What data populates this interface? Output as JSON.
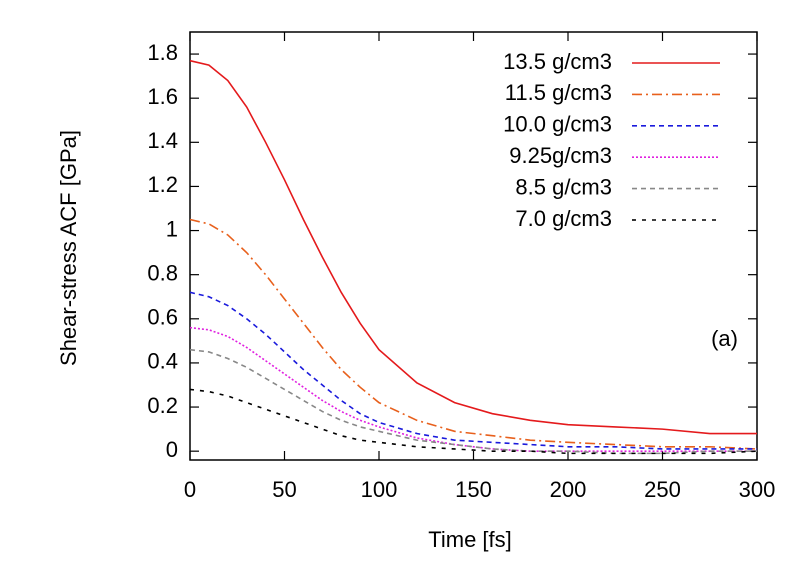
{
  "chart_data": {
    "type": "line",
    "xlabel": "Time [fs]",
    "ylabel": "Shear-stress ACF [GPa]",
    "annotation": "(a)",
    "x": [
      0,
      10,
      20,
      30,
      40,
      50,
      60,
      70,
      80,
      90,
      100,
      120,
      140,
      160,
      180,
      200,
      225,
      250,
      275,
      300
    ],
    "xlim": [
      0,
      300
    ],
    "xticks": [
      0,
      50,
      100,
      150,
      200,
      250,
      300
    ],
    "ylim": [
      -0.04,
      1.9
    ],
    "yticks": [
      0,
      0.2,
      0.4,
      0.6,
      0.8,
      1,
      1.2,
      1.4,
      1.6,
      1.8
    ],
    "series": [
      {
        "name": "13.5 g/cm3",
        "color": "#e41a1c",
        "values": [
          1.77,
          1.75,
          1.68,
          1.56,
          1.4,
          1.23,
          1.05,
          0.88,
          0.72,
          0.58,
          0.46,
          0.31,
          0.22,
          0.17,
          0.14,
          0.12,
          0.11,
          0.1,
          0.08,
          0.08
        ]
      },
      {
        "name": "11.5 g/cm3",
        "color": "#e8601c",
        "values": [
          1.05,
          1.03,
          0.98,
          0.9,
          0.8,
          0.69,
          0.58,
          0.47,
          0.37,
          0.29,
          0.22,
          0.14,
          0.09,
          0.07,
          0.05,
          0.04,
          0.03,
          0.02,
          0.02,
          0.01
        ]
      },
      {
        "name": "10.0 g/cm3",
        "color": "#1a1adc",
        "values": [
          0.72,
          0.7,
          0.66,
          0.6,
          0.53,
          0.45,
          0.37,
          0.3,
          0.23,
          0.17,
          0.13,
          0.08,
          0.05,
          0.04,
          0.03,
          0.02,
          0.02,
          0.01,
          0.01,
          0.01
        ]
      },
      {
        "name": "9.25g/cm3",
        "color": "#e020e0",
        "values": [
          0.56,
          0.55,
          0.52,
          0.47,
          0.41,
          0.35,
          0.29,
          0.23,
          0.18,
          0.14,
          0.11,
          0.06,
          0.03,
          0.01,
          0.0,
          0.0,
          0.0,
          0.0,
          0.0,
          0.0
        ]
      },
      {
        "name": "8.5 g/cm3",
        "color": "#888888",
        "values": [
          0.46,
          0.45,
          0.42,
          0.38,
          0.33,
          0.28,
          0.23,
          0.18,
          0.14,
          0.11,
          0.09,
          0.05,
          0.03,
          0.01,
          0.0,
          0.0,
          -0.01,
          -0.01,
          0.0,
          0.0
        ]
      },
      {
        "name": "7.0 g/cm3",
        "color": "#000000",
        "values": [
          0.28,
          0.27,
          0.25,
          0.22,
          0.19,
          0.16,
          0.13,
          0.1,
          0.07,
          0.05,
          0.04,
          0.02,
          0.01,
          0.0,
          0.0,
          -0.01,
          -0.01,
          -0.01,
          -0.01,
          0.0
        ]
      }
    ]
  }
}
